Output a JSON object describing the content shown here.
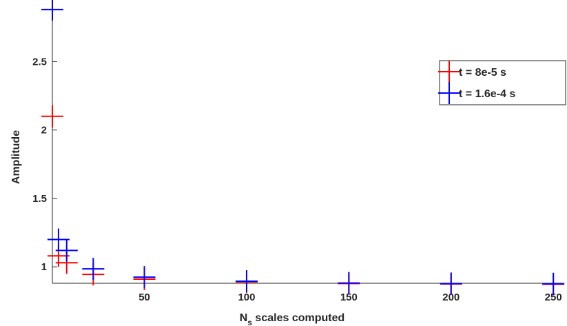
{
  "chart_data": {
    "type": "scatter",
    "marker": "plus",
    "title": "",
    "xlabel": "N",
    "xlabel_subscript": "s",
    "xlabel_suffix": " scales computed",
    "ylabel": "Amplitude",
    "xlim": [
      5,
      255
    ],
    "ylim": [
      0.88,
      2.95
    ],
    "xticks": [
      50,
      100,
      150,
      200,
      250
    ],
    "yticks": [
      1,
      1.5,
      2,
      2.5
    ],
    "ytick_labels": [
      "1",
      "1.5",
      "2",
      "2.5"
    ],
    "grid": false,
    "legend_position": "top-right",
    "series": [
      {
        "name": "t = 8e-5 s",
        "color": "#ff0000",
        "points": [
          [
            5,
            2.1
          ],
          [
            8,
            1.08
          ],
          [
            12,
            1.03
          ],
          [
            25,
            0.945
          ],
          [
            50,
            0.91
          ],
          [
            100,
            0.89
          ],
          [
            150,
            0.878
          ],
          [
            200,
            0.875
          ],
          [
            250,
            0.873
          ]
        ]
      },
      {
        "name": "t = 1.6e-4 s",
        "color": "#0000ff",
        "points": [
          [
            5,
            2.88
          ],
          [
            8,
            1.2
          ],
          [
            12,
            1.12
          ],
          [
            25,
            0.985
          ],
          [
            50,
            0.925
          ],
          [
            100,
            0.895
          ],
          [
            150,
            0.882
          ],
          [
            200,
            0.878
          ],
          [
            250,
            0.876
          ]
        ]
      }
    ]
  }
}
